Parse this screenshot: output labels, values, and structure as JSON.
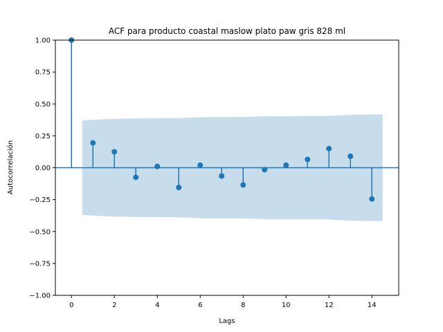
{
  "chart_data": {
    "type": "stem",
    "title": "ACF para producto coastal maslow  plato paw gris 828 ml",
    "xlabel": "Lags",
    "ylabel": "Autocorrelación",
    "xlim": [
      -0.75,
      15.25
    ],
    "ylim": [
      -1.0,
      1.0
    ],
    "xticks": [
      0,
      2,
      4,
      6,
      8,
      10,
      12,
      14
    ],
    "xtick_labels": [
      "0",
      "2",
      "4",
      "6",
      "8",
      "10",
      "12",
      "14"
    ],
    "yticks": [
      -1.0,
      -0.75,
      -0.5,
      -0.25,
      0.0,
      0.25,
      0.5,
      0.75,
      1.0
    ],
    "ytick_labels": [
      "−1.00",
      "−0.75",
      "−0.50",
      "−0.25",
      "0.00",
      "0.25",
      "0.50",
      "0.75",
      "1.00"
    ],
    "grid": false,
    "lags": [
      0,
      1,
      2,
      3,
      4,
      5,
      6,
      7,
      8,
      9,
      10,
      11,
      12,
      13,
      14
    ],
    "values": [
      1.0,
      0.195,
      0.125,
      -0.075,
      0.01,
      -0.155,
      0.02,
      -0.065,
      -0.135,
      -0.015,
      0.02,
      0.065,
      0.15,
      0.09,
      -0.245
    ],
    "confidence_band": {
      "x": [
        0.5,
        1,
        2,
        3,
        4,
        5,
        6,
        7,
        8,
        9,
        10,
        11,
        12,
        13,
        14,
        14.5
      ],
      "upper": [
        0.37,
        0.375,
        0.383,
        0.386,
        0.388,
        0.388,
        0.396,
        0.397,
        0.398,
        0.403,
        0.403,
        0.405,
        0.406,
        0.415,
        0.418,
        0.418
      ],
      "lower": [
        -0.37,
        -0.375,
        -0.383,
        -0.386,
        -0.388,
        -0.388,
        -0.396,
        -0.397,
        -0.398,
        -0.403,
        -0.403,
        -0.405,
        -0.406,
        -0.415,
        -0.418,
        -0.418
      ]
    },
    "colors": {
      "stem": "#1f77b4",
      "band": "#1f77b4",
      "axes": "#000000"
    }
  }
}
